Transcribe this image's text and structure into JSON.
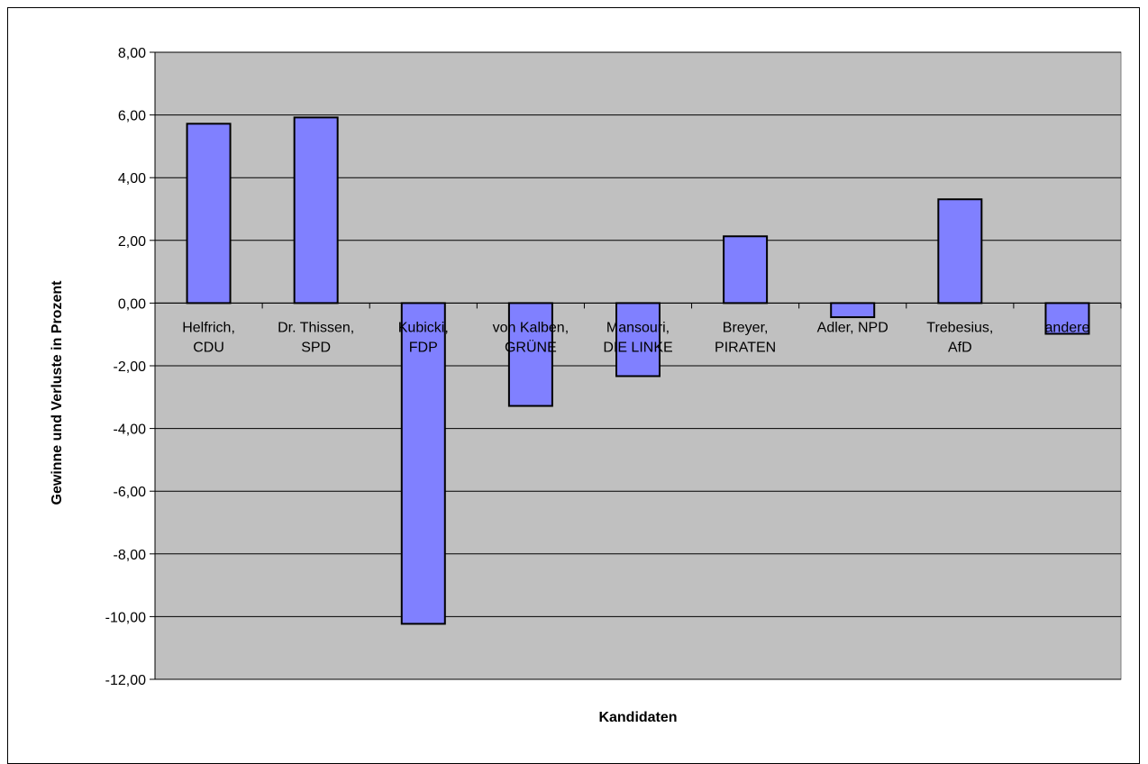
{
  "chart_data": {
    "type": "bar",
    "title": "",
    "xlabel": "Kandidaten",
    "ylabel": "Gewinne und Verluste in Prozent",
    "ylim": [
      -12,
      8
    ],
    "ytick_step": 2,
    "ytick_labels": [
      "8,00",
      "6,00",
      "4,00",
      "2,00",
      "0,00",
      "-2,00",
      "-4,00",
      "-6,00",
      "-8,00",
      "-10,00",
      "-12,00"
    ],
    "grid": true,
    "legend": "none",
    "categories": [
      [
        "Helfrich,",
        "CDU"
      ],
      [
        "Dr. Thissen,",
        "SPD"
      ],
      [
        "Kubicki,",
        "FDP"
      ],
      [
        "von Kalben,",
        "GRÜNE"
      ],
      [
        "Mansouri,",
        "DIE LINKE"
      ],
      [
        "Breyer,",
        "PIRATEN"
      ],
      [
        "Adler, NPD"
      ],
      [
        "Trebesius,",
        "AfD"
      ],
      [
        "andere"
      ]
    ],
    "values": [
      5.72,
      5.92,
      -10.23,
      -3.28,
      -2.33,
      2.13,
      -0.45,
      3.31,
      -0.98
    ],
    "colors": {
      "bar_fill": "#8080ff",
      "bar_stroke": "#000000",
      "plot_bg": "#c0c0c0",
      "grid": "#000000"
    }
  }
}
